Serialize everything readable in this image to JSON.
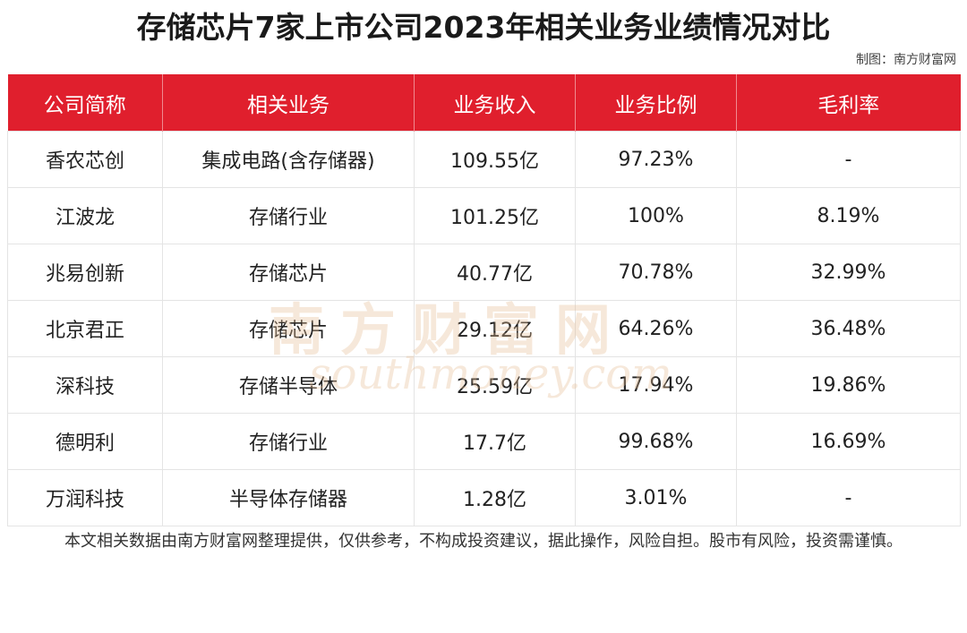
{
  "title": "存储芯片7家上市公司2023年相关业务业绩情况对比",
  "credit": "制图：南方财富网",
  "watermark": {
    "cn": "南方财富网",
    "en": "southmoney.com"
  },
  "chart_data": {
    "type": "table",
    "columns": [
      "公司简称",
      "相关业务",
      "业务收入",
      "业务比例",
      "毛利率"
    ],
    "rows": [
      [
        "香农芯创",
        "集成电路(含存储器)",
        "109.55亿",
        "97.23%",
        "-"
      ],
      [
        "江波龙",
        "存储行业",
        "101.25亿",
        "100%",
        "8.19%"
      ],
      [
        "兆易创新",
        "存储芯片",
        "40.77亿",
        "70.78%",
        "32.99%"
      ],
      [
        "北京君正",
        "存储芯片",
        "29.12亿",
        "64.26%",
        "36.48%"
      ],
      [
        "深科技",
        "存储半导体",
        "25.59亿",
        "17.94%",
        "19.86%"
      ],
      [
        "德明利",
        "存储行业",
        "17.7亿",
        "99.68%",
        "16.69%"
      ],
      [
        "万润科技",
        "半导体存储器",
        "1.28亿",
        "3.01%",
        "-"
      ]
    ],
    "header_color": "#e01f2d"
  },
  "disclaimer": "本文相关数据由南方财富网整理提供，仅供参考，不构成投资建议，据此操作，风险自担。股市有风险，投资需谨慎。"
}
